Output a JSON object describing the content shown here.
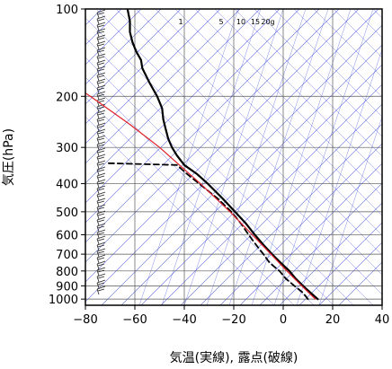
{
  "chart_data": {
    "type": "line",
    "chart_kind": "skew-T log-P (emagram-style) diagram",
    "title": "",
    "xlabel": "気温(実線), 露点(破線)",
    "ylabel": "気圧(hPa)",
    "xlim": [
      -80,
      40
    ],
    "ylim": [
      1050,
      100
    ],
    "y_scale": "log",
    "x_ticks": [
      -80,
      -60,
      -40,
      -20,
      0,
      20,
      40
    ],
    "x_tick_labels": [
      "−80",
      "−60",
      "−40",
      "−20",
      "0",
      "20",
      "40"
    ],
    "y_ticks": [
      100,
      200,
      300,
      400,
      500,
      600,
      700,
      800,
      900,
      1000
    ],
    "y_tick_labels": [
      "100",
      "200",
      "300",
      "400",
      "500",
      "600",
      "700",
      "800",
      "900",
      "1000"
    ],
    "grid": true,
    "mixing_ratio_labels": [
      "1",
      "5",
      "10",
      "15",
      "20g"
    ],
    "colors": {
      "temperature": "#000000",
      "dewpoint": "#000000",
      "parcel_curve": "#e0202a",
      "guide_lines": "#3a48d8",
      "grid": "#555555",
      "wind_barbs": "#222222"
    },
    "series": [
      {
        "style": "solid black",
        "points": [
          {
            "p": 1000,
            "t": 14
          },
          {
            "p": 950,
            "t": 11
          },
          {
            "p": 900,
            "t": 8
          },
          {
            "p": 850,
            "t": 5
          },
          {
            "p": 800,
            "t": 2.5
          },
          {
            "p": 750,
            "t": -1
          },
          {
            "p": 700,
            "t": -4.5
          },
          {
            "p": 650,
            "t": -8
          },
          {
            "p": 600,
            "t": -11.5
          },
          {
            "p": 550,
            "t": -15
          },
          {
            "p": 500,
            "t": -19.5
          },
          {
            "p": 450,
            "t": -24.5
          },
          {
            "p": 400,
            "t": -30.5
          },
          {
            "p": 370,
            "t": -35
          },
          {
            "p": 345,
            "t": -40
          },
          {
            "p": 320,
            "t": -43
          },
          {
            "p": 300,
            "t": -45
          },
          {
            "p": 280,
            "t": -46.5
          },
          {
            "p": 260,
            "t": -47.5
          },
          {
            "p": 240,
            "t": -48.5
          },
          {
            "p": 220,
            "t": -49
          },
          {
            "p": 200,
            "t": -51
          },
          {
            "p": 180,
            "t": -54
          },
          {
            "p": 160,
            "t": -57
          },
          {
            "p": 150,
            "t": -57.5
          },
          {
            "p": 140,
            "t": -59.5
          },
          {
            "p": 130,
            "t": -61
          },
          {
            "p": 120,
            "t": -62
          },
          {
            "p": 110,
            "t": -62
          },
          {
            "p": 100,
            "t": -63
          }
        ]
      },
      {
        "style": "dashed black",
        "points": [
          {
            "p": 1000,
            "t": 10
          },
          {
            "p": 950,
            "t": 8
          },
          {
            "p": 900,
            "t": 4.5
          },
          {
            "p": 850,
            "t": 1
          },
          {
            "p": 800,
            "t": -1.5
          },
          {
            "p": 750,
            "t": -5.5
          },
          {
            "p": 700,
            "t": -8
          },
          {
            "p": 650,
            "t": -11
          },
          {
            "p": 600,
            "t": -14
          },
          {
            "p": 550,
            "t": -17
          },
          {
            "p": 500,
            "t": -21
          },
          {
            "p": 450,
            "t": -26.5
          },
          {
            "p": 400,
            "t": -34
          },
          {
            "p": 370,
            "t": -39
          },
          {
            "p": 345,
            "t": -43
          },
          {
            "p": 340,
            "t": -72
          }
        ]
      },
      {
        "style": "solid red",
        "points": [
          {
            "p": 1000,
            "t": 13
          },
          {
            "p": 900,
            "t": 7.5
          },
          {
            "p": 800,
            "t": 1.5
          },
          {
            "p": 700,
            "t": -5
          },
          {
            "p": 600,
            "t": -12.5
          },
          {
            "p": 500,
            "t": -21.5
          },
          {
            "p": 400,
            "t": -33.5
          },
          {
            "p": 300,
            "t": -50
          },
          {
            "p": 250,
            "t": -62
          },
          {
            "p": 200,
            "t": -78
          },
          {
            "p": 190,
            "t": -82
          }
        ]
      }
    ]
  }
}
